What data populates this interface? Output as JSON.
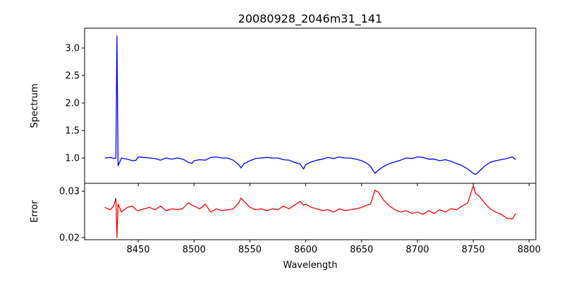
{
  "chart_data": [
    {
      "type": "line",
      "title": "20080928_2046m31_141",
      "xlabel": "",
      "ylabel": "Spectrum",
      "xlim": [
        8402,
        8806
      ],
      "ylim": [
        0.54,
        3.36
      ],
      "xticks": [
        8450,
        8500,
        8550,
        8600,
        8650,
        8700,
        8750,
        8800
      ],
      "yticks": [
        1.0,
        1.5,
        2.0,
        2.5,
        3.0
      ],
      "ytick_labels": [
        "1.0",
        "1.5",
        "2.0",
        "2.5",
        "3.0"
      ],
      "color": "#0000ff",
      "points": [
        [
          8420,
          1.0
        ],
        [
          8425,
          1.01
        ],
        [
          8428,
          0.99
        ],
        [
          8430,
          1.0
        ],
        [
          8431,
          3.22
        ],
        [
          8432,
          0.86
        ],
        [
          8435,
          1.0
        ],
        [
          8440,
          0.98
        ],
        [
          8445,
          0.95
        ],
        [
          8448,
          0.96
        ],
        [
          8450,
          1.02
        ],
        [
          8455,
          1.01
        ],
        [
          8460,
          1.0
        ],
        [
          8465,
          0.99
        ],
        [
          8470,
          0.96
        ],
        [
          8475,
          1.0
        ],
        [
          8480,
          0.98
        ],
        [
          8485,
          1.0
        ],
        [
          8490,
          0.98
        ],
        [
          8495,
          0.92
        ],
        [
          8498,
          0.9
        ],
        [
          8500,
          0.95
        ],
        [
          8505,
          0.97
        ],
        [
          8510,
          0.96
        ],
        [
          8515,
          1.01
        ],
        [
          8520,
          1.02
        ],
        [
          8525,
          1.0
        ],
        [
          8530,
          1.0
        ],
        [
          8535,
          0.96
        ],
        [
          8540,
          0.88
        ],
        [
          8542,
          0.82
        ],
        [
          8545,
          0.9
        ],
        [
          8550,
          0.95
        ],
        [
          8555,
          0.99
        ],
        [
          8560,
          1.0
        ],
        [
          8565,
          1.01
        ],
        [
          8570,
          1.0
        ],
        [
          8575,
          1.0
        ],
        [
          8580,
          0.97
        ],
        [
          8585,
          0.96
        ],
        [
          8590,
          0.92
        ],
        [
          8595,
          0.89
        ],
        [
          8598,
          0.8
        ],
        [
          8600,
          0.88
        ],
        [
          8605,
          0.93
        ],
        [
          8610,
          0.96
        ],
        [
          8615,
          0.98
        ],
        [
          8620,
          1.01
        ],
        [
          8625,
          0.99
        ],
        [
          8630,
          1.02
        ],
        [
          8635,
          1.0
        ],
        [
          8640,
          1.0
        ],
        [
          8645,
          0.98
        ],
        [
          8650,
          0.95
        ],
        [
          8655,
          0.9
        ],
        [
          8658,
          0.85
        ],
        [
          8662,
          0.72
        ],
        [
          8665,
          0.78
        ],
        [
          8670,
          0.85
        ],
        [
          8675,
          0.9
        ],
        [
          8680,
          0.93
        ],
        [
          8685,
          0.96
        ],
        [
          8690,
          1.0
        ],
        [
          8695,
          0.99
        ],
        [
          8700,
          1.02
        ],
        [
          8705,
          1.01
        ],
        [
          8710,
          0.98
        ],
        [
          8715,
          0.98
        ],
        [
          8720,
          0.95
        ],
        [
          8725,
          0.97
        ],
        [
          8730,
          0.94
        ],
        [
          8735,
          0.9
        ],
        [
          8740,
          0.86
        ],
        [
          8745,
          0.8
        ],
        [
          8750,
          0.72
        ],
        [
          8752,
          0.7
        ],
        [
          8755,
          0.75
        ],
        [
          8760,
          0.85
        ],
        [
          8765,
          0.92
        ],
        [
          8770,
          0.95
        ],
        [
          8775,
          0.97
        ],
        [
          8780,
          0.99
        ],
        [
          8785,
          1.02
        ],
        [
          8788,
          0.97
        ]
      ]
    },
    {
      "type": "line",
      "title": "",
      "xlabel": "Wavelength",
      "ylabel": "Error",
      "xlim": [
        8402,
        8806
      ],
      "ylim": [
        0.01955,
        0.0317
      ],
      "xticks": [
        8450,
        8500,
        8550,
        8600,
        8650,
        8700,
        8750,
        8800
      ],
      "xtick_labels": [
        "8450",
        "8500",
        "8550",
        "8600",
        "8650",
        "8700",
        "8750",
        "8800"
      ],
      "yticks": [
        0.02,
        0.03
      ],
      "ytick_labels": [
        "0.02",
        "0.03"
      ],
      "color": "#ff0000",
      "points": [
        [
          8420,
          0.0265
        ],
        [
          8425,
          0.026
        ],
        [
          8428,
          0.0268
        ],
        [
          8430,
          0.0285
        ],
        [
          8431,
          0.02
        ],
        [
          8432,
          0.0272
        ],
        [
          8435,
          0.0255
        ],
        [
          8440,
          0.0265
        ],
        [
          8445,
          0.0268
        ],
        [
          8448,
          0.026
        ],
        [
          8450,
          0.0258
        ],
        [
          8455,
          0.0262
        ],
        [
          8460,
          0.0265
        ],
        [
          8465,
          0.026
        ],
        [
          8470,
          0.0268
        ],
        [
          8475,
          0.0258
        ],
        [
          8480,
          0.0262
        ],
        [
          8485,
          0.026
        ],
        [
          8490,
          0.0263
        ],
        [
          8495,
          0.0275
        ],
        [
          8498,
          0.027
        ],
        [
          8500,
          0.0268
        ],
        [
          8505,
          0.0262
        ],
        [
          8510,
          0.0272
        ],
        [
          8515,
          0.0255
        ],
        [
          8520,
          0.0262
        ],
        [
          8525,
          0.0258
        ],
        [
          8530,
          0.026
        ],
        [
          8535,
          0.0262
        ],
        [
          8540,
          0.0275
        ],
        [
          8542,
          0.0285
        ],
        [
          8545,
          0.0278
        ],
        [
          8550,
          0.0265
        ],
        [
          8555,
          0.026
        ],
        [
          8560,
          0.0262
        ],
        [
          8565,
          0.0258
        ],
        [
          8570,
          0.0262
        ],
        [
          8575,
          0.026
        ],
        [
          8580,
          0.0268
        ],
        [
          8585,
          0.0262
        ],
        [
          8590,
          0.027
        ],
        [
          8595,
          0.0278
        ],
        [
          8598,
          0.027
        ],
        [
          8600,
          0.0272
        ],
        [
          8605,
          0.0265
        ],
        [
          8610,
          0.0262
        ],
        [
          8615,
          0.0258
        ],
        [
          8620,
          0.026
        ],
        [
          8625,
          0.0255
        ],
        [
          8630,
          0.0262
        ],
        [
          8635,
          0.0258
        ],
        [
          8640,
          0.026
        ],
        [
          8645,
          0.0262
        ],
        [
          8650,
          0.0265
        ],
        [
          8655,
          0.027
        ],
        [
          8658,
          0.0272
        ],
        [
          8662,
          0.0302
        ],
        [
          8665,
          0.0298
        ],
        [
          8670,
          0.028
        ],
        [
          8675,
          0.0268
        ],
        [
          8680,
          0.026
        ],
        [
          8685,
          0.0255
        ],
        [
          8690,
          0.0258
        ],
        [
          8695,
          0.0252
        ],
        [
          8700,
          0.0255
        ],
        [
          8705,
          0.025
        ],
        [
          8710,
          0.0258
        ],
        [
          8715,
          0.0252
        ],
        [
          8720,
          0.026
        ],
        [
          8725,
          0.0255
        ],
        [
          8730,
          0.0262
        ],
        [
          8735,
          0.026
        ],
        [
          8740,
          0.0268
        ],
        [
          8745,
          0.0275
        ],
        [
          8750,
          0.0312
        ],
        [
          8752,
          0.0295
        ],
        [
          8755,
          0.029
        ],
        [
          8760,
          0.0275
        ],
        [
          8765,
          0.0262
        ],
        [
          8770,
          0.0255
        ],
        [
          8775,
          0.025
        ],
        [
          8780,
          0.0242
        ],
        [
          8785,
          0.024
        ],
        [
          8788,
          0.0252
        ]
      ]
    }
  ]
}
